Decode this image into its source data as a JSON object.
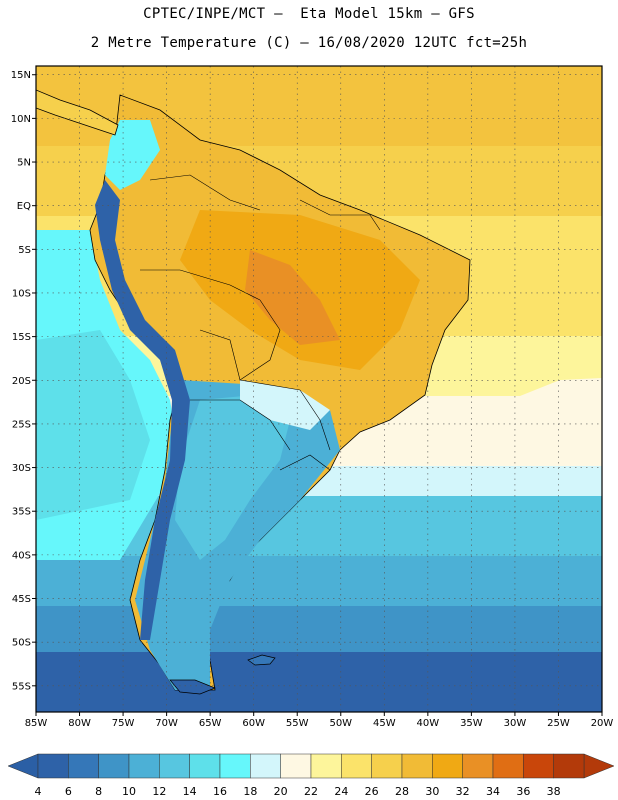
{
  "header": {
    "title_line1": "CPTEC/INPE/MCT –  Eta Model 15km – GFS",
    "title_line2": "2 Metre Temperature (C) – 16/08/2020 12UTC fct=25h"
  },
  "map": {
    "lon_range": [
      -85,
      -20
    ],
    "lat_range": [
      -58,
      16
    ],
    "lon_ticks": [
      -85,
      -80,
      -75,
      -70,
      -65,
      -60,
      -55,
      -50,
      -45,
      -40,
      -35,
      -30,
      -25,
      -20
    ],
    "lon_tick_labels": [
      "85W",
      "80W",
      "75W",
      "70W",
      "65W",
      "60W",
      "55W",
      "50W",
      "45W",
      "40W",
      "35W",
      "30W",
      "25W",
      "20W"
    ],
    "lat_ticks": [
      15,
      10,
      5,
      0,
      -5,
      -10,
      -15,
      -20,
      -25,
      -30,
      -35,
      -40,
      -45,
      -50,
      -55
    ],
    "lat_tick_labels": [
      "15N",
      "10N",
      "5N",
      "EQ",
      "5S",
      "10S",
      "15S",
      "20S",
      "25S",
      "30S",
      "35S",
      "40S",
      "45S",
      "50S",
      "55S"
    ],
    "grid": true
  },
  "colorbar": {
    "labels": [
      "4",
      "6",
      "8",
      "10",
      "12",
      "14",
      "16",
      "18",
      "20",
      "22",
      "24",
      "26",
      "28",
      "30",
      "32",
      "34",
      "36",
      "38"
    ],
    "colors": [
      "#2e62a8",
      "#3577b8",
      "#3f94c7",
      "#4cb0d6",
      "#57c6e0",
      "#5ee0ea",
      "#66f7fb",
      "#d3f6fb",
      "#fef8e3",
      "#fdf59b",
      "#fbe36a",
      "#f6d04c",
      "#f1bb36",
      "#f0a914",
      "#e99025",
      "#e06e14",
      "#c9460a",
      "#b33a0a"
    ],
    "low_arrow_color": "#2b5fa5",
    "high_arrow_color": "#b33a0a"
  }
}
